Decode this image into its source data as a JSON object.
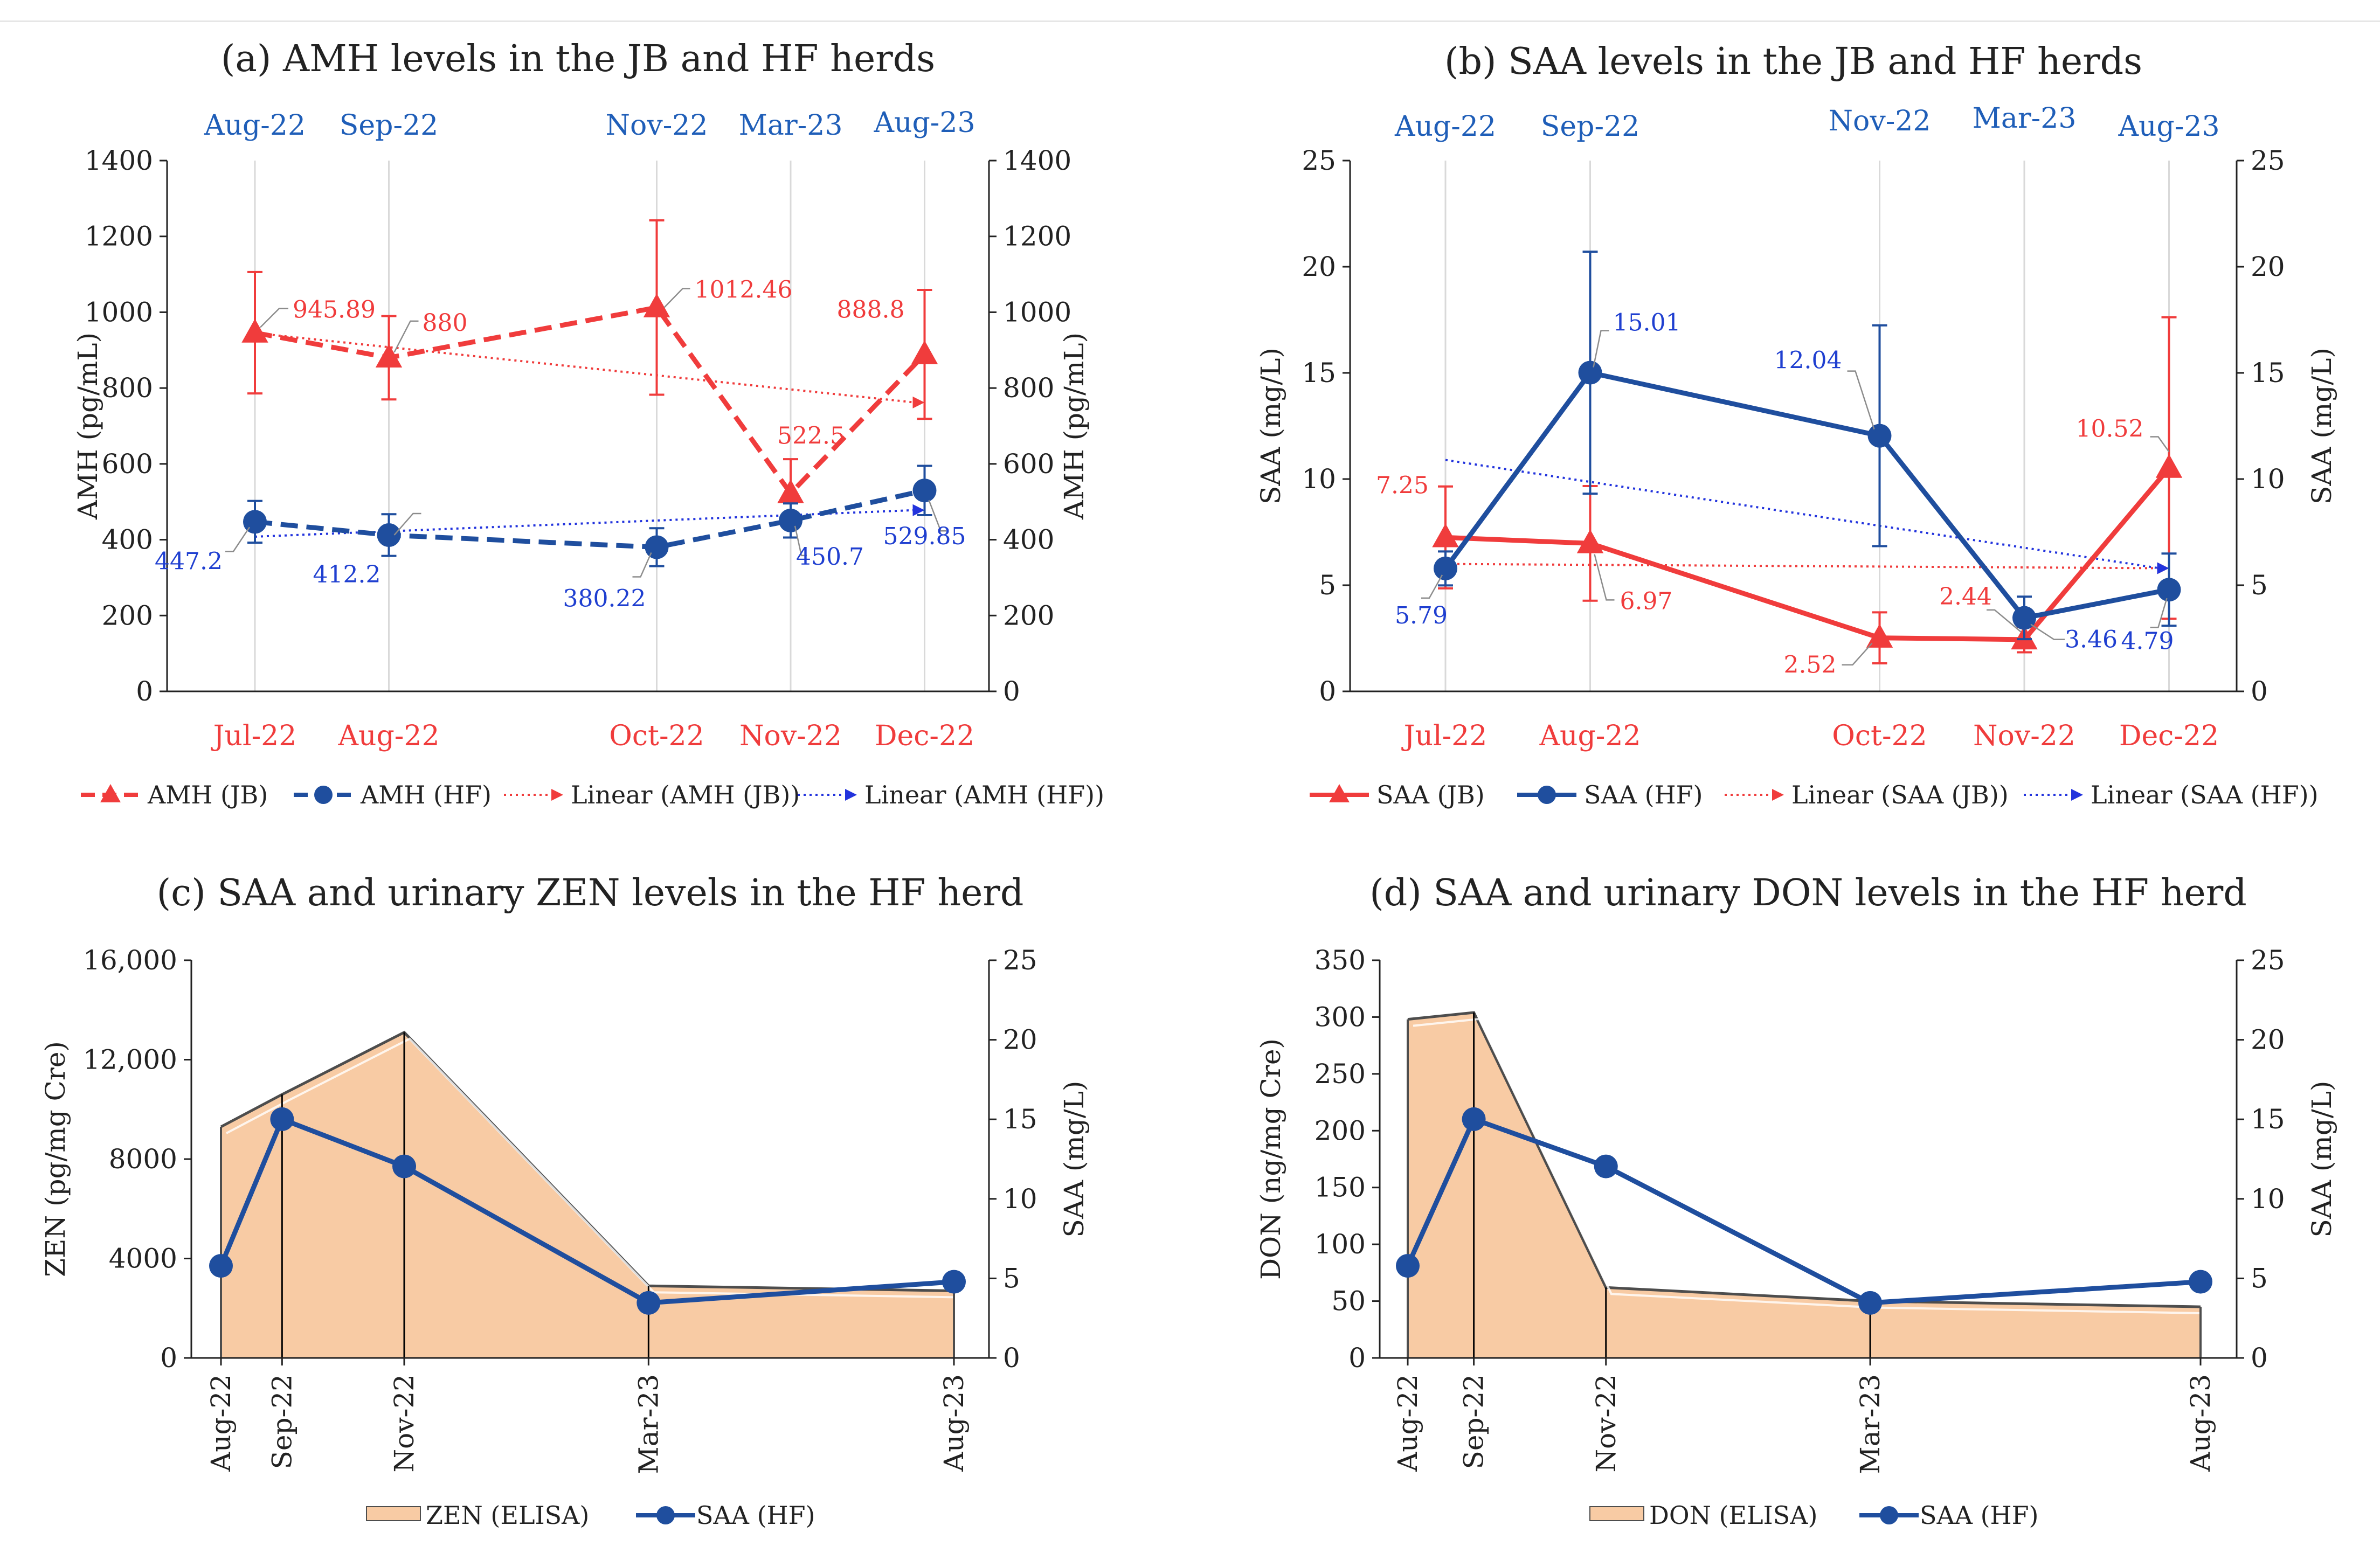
{
  "colors": {
    "jb_red": "#F03C3C",
    "hf_blue": "#1F4E9E",
    "jb_top_axis": "#1F5EB8",
    "axis": "#222222",
    "grid": "#D9D9D9",
    "hf_label_blue": "#1F3FD0",
    "area_fill": "#F8CBA4",
    "area_stroke": "#4D4D4D",
    "trend_blue": "#2233DD"
  },
  "chart_data": [
    {
      "id": "a",
      "type": "line",
      "title": "(a) AMH levels in the JB and HF herds",
      "ylabel_left": "AMH (pg/mL)",
      "ylabel_right": "AMH (pg/mL)",
      "ylim": [
        0,
        1400
      ],
      "yticks": [
        "0",
        "200",
        "400",
        "600",
        "800",
        "1000",
        "1200",
        "1400"
      ],
      "x_positions": [
        0,
        1,
        3,
        4,
        5
      ],
      "bottom_labels": [
        "Jul-22",
        "Aug-22",
        "Oct-22",
        "Nov-22",
        "Dec-22"
      ],
      "top_labels": [
        "Aug-22",
        "Sep-22",
        "Nov-22",
        "Mar-23",
        "Aug-23"
      ],
      "series": [
        {
          "name": "AMH (JB)",
          "values": [
            945.89,
            880,
            1012.46,
            522.5,
            888.8
          ],
          "errors": [
            160,
            110,
            230,
            90,
            170
          ],
          "labels": [
            "945.89",
            "880",
            "1012.46",
            "522.5",
            "888.8"
          ]
        },
        {
          "name": "AMH (HF)",
          "values": [
            447.2,
            412.2,
            380.22,
            450.7,
            529.85
          ],
          "errors": [
            55,
            55,
            50,
            45,
            65
          ],
          "labels": [
            "447.2",
            "412.2",
            "380.22",
            "450.7",
            "529.85"
          ]
        }
      ],
      "trends": [
        {
          "name": "Linear (AMH (JB))",
          "from": 945,
          "to": 762
        },
        {
          "name": "Linear (AMH (HF))",
          "from": 408,
          "to": 478
        }
      ]
    },
    {
      "id": "b",
      "type": "line",
      "title": "(b) SAA levels in the JB and HF herds",
      "ylabel_left": "SAA (mg/L)",
      "ylabel_right": "SAA (mg/L)",
      "ylim": [
        0,
        25
      ],
      "yticks": [
        "0",
        "5",
        "10",
        "15",
        "20",
        "25"
      ],
      "x_positions": [
        0,
        1,
        3,
        4,
        5
      ],
      "bottom_labels": [
        "Jul-22",
        "Aug-22",
        "Oct-22",
        "Nov-22",
        "Dec-22"
      ],
      "top_labels": [
        "Aug-22",
        "Sep-22",
        "Nov-22",
        "Mar-23",
        "Aug-23"
      ],
      "series": [
        {
          "name": "SAA (JB)",
          "values": [
            7.25,
            6.97,
            2.52,
            2.44,
            10.52
          ],
          "errors": [
            2.4,
            2.7,
            1.2,
            0.6,
            7.1
          ],
          "labels": [
            "7.25",
            "6.97",
            "2.52",
            "2.44",
            "10.52"
          ]
        },
        {
          "name": "SAA (HF)",
          "values": [
            5.79,
            15.01,
            12.04,
            3.46,
            4.79
          ],
          "errors": [
            0.8,
            5.7,
            5.2,
            1.0,
            1.7
          ],
          "labels": [
            "5.79",
            "15.01",
            "12.04",
            "3.46",
            "4.79"
          ]
        }
      ],
      "trends": [
        {
          "name": "Linear (SAA (JB))",
          "from": 6.0,
          "to": 5.8
        },
        {
          "name": "Linear (SAA (HF))",
          "from": 10.9,
          "to": 5.8
        }
      ]
    },
    {
      "id": "c",
      "type": "area",
      "title": "(c) SAA and urinary ZEN levels in the HF herd",
      "ylabel_left": "ZEN (pg/mg Cre)",
      "ylabel_right": "SAA (mg/L)",
      "ylim_left": [
        0,
        16000
      ],
      "ylim_right": [
        0,
        25
      ],
      "yticks_left": [
        "0",
        "4000",
        "8000",
        "12,000",
        "16,000"
      ],
      "yticks_right": [
        "0",
        "5",
        "10",
        "15",
        "20",
        "25"
      ],
      "x_positions": [
        0,
        2,
        6,
        14,
        24
      ],
      "x_labels": [
        "Aug-22",
        "Sep-22",
        "Nov-22",
        "Mar-23",
        "Aug-23"
      ],
      "area": {
        "name": "ZEN (ELISA)",
        "values": [
          9300,
          10600,
          13100,
          2900,
          2700
        ]
      },
      "line": {
        "name": "SAA (HF)",
        "values": [
          5.79,
          15.01,
          12.04,
          3.46,
          4.79
        ]
      }
    },
    {
      "id": "d",
      "type": "area",
      "title": "(d) SAA and urinary DON levels in the HF herd",
      "ylabel_left": "DON (ng/mg Cre)",
      "ylabel_right": "SAA (mg/L)",
      "ylim_left": [
        0,
        350
      ],
      "ylim_right": [
        0,
        25
      ],
      "yticks_left": [
        "0",
        "50",
        "100",
        "150",
        "200",
        "250",
        "300",
        "350"
      ],
      "yticks_right": [
        "0",
        "5",
        "10",
        "15",
        "20",
        "25"
      ],
      "x_positions": [
        0,
        2,
        6,
        14,
        24
      ],
      "x_labels": [
        "Aug-22",
        "Sep-22",
        "Nov-22",
        "Mar-23",
        "Aug-23"
      ],
      "area": {
        "name": "DON (ELISA)",
        "values": [
          298,
          304,
          62,
          50,
          45
        ]
      },
      "line": {
        "name": "SAA (HF)",
        "values": [
          5.79,
          15.01,
          12.04,
          3.46,
          4.79
        ]
      }
    }
  ]
}
